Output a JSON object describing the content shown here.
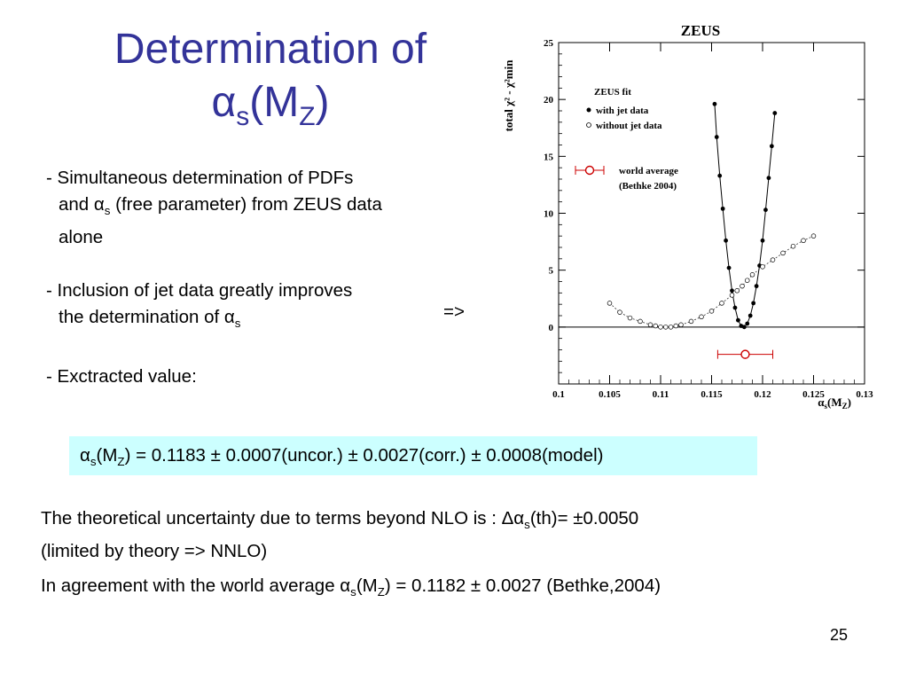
{
  "slide": {
    "title_main": "Determination of",
    "title_alpha": "α",
    "title_s": "s",
    "title_paren_open": "(M",
    "title_z": "Z",
    "title_paren_close": ")",
    "bullet1_line1": "- Simultaneous determination of PDFs",
    "bullet1_line2a": "and α",
    "bullet1_sub": "s",
    "bullet1_line2b": " (free parameter) from ZEUS data",
    "bullet1_line3": "alone",
    "bullet2_line1": "- Inclusion of jet data greatly improves",
    "bullet2_line2a": "the determination of α",
    "bullet2_sub": "s",
    "bullet3": "- Exctracted value:",
    "arrow": "=>",
    "result_a": "α",
    "result_s": "s",
    "result_b": "(M",
    "result_z": "Z",
    "result_c": ") = 0.1183 ± 0.0007(uncor.) ± 0.0027(corr.) ± 0.0008(model)",
    "theory_line1a": "The theoretical uncertainty due to terms beyond NLO is :  Δα",
    "theory_sub": "s",
    "theory_line1b": "(th)= ±0.0050",
    "theory_line2": "(limited by theory => NNLO)",
    "agree_a": "In agreement with the world average α",
    "agree_s": "s",
    "agree_b": "(M",
    "agree_z": "Z",
    "agree_c": ") = 0.1182 ± 0.0027  (Bethke,2004)",
    "page_number": "25"
  },
  "chart_data": {
    "type": "scatter",
    "title": "ZEUS",
    "xlabel_main": "α",
    "xlabel_sub": "s",
    "xlabel_rest": "(M",
    "xlabel_z": "Z",
    "xlabel_close": ")",
    "ylabel": "total χ² - χ²min",
    "xlim": [
      0.1,
      0.13
    ],
    "ylim": [
      -5,
      25
    ],
    "xticks": [
      "0.1",
      "0.105",
      "0.11",
      "0.115",
      "0.12",
      "0.125",
      "0.13"
    ],
    "yticks": [
      "0",
      "5",
      "10",
      "15",
      "20",
      "25"
    ],
    "legend_title": "ZEUS fit",
    "series": [
      {
        "name": "with jet data",
        "marker": "filled",
        "x": [
          0.1153,
          0.1155,
          0.1158,
          0.1161,
          0.1164,
          0.1167,
          0.117,
          0.1173,
          0.1176,
          0.1179,
          0.1182,
          0.1185,
          0.1188,
          0.1191,
          0.1194,
          0.1197,
          0.12,
          0.1203,
          0.1206,
          0.1209,
          0.1212
        ],
        "y": [
          19.6,
          16.7,
          13.3,
          10.4,
          7.6,
          5.2,
          3.2,
          1.7,
          0.6,
          0.1,
          0.0,
          0.3,
          1.0,
          2.1,
          3.6,
          5.4,
          7.6,
          10.3,
          13.1,
          15.9,
          18.8
        ]
      },
      {
        "name": "without jet data",
        "marker": "open",
        "x": [
          0.105,
          0.106,
          0.107,
          0.108,
          0.109,
          0.1095,
          0.11,
          0.1105,
          0.111,
          0.1115,
          0.112,
          0.113,
          0.114,
          0.115,
          0.116,
          0.117,
          0.1175,
          0.118,
          0.1185,
          0.119,
          0.12,
          0.121,
          0.122,
          0.123,
          0.124,
          0.125
        ],
        "y": [
          2.1,
          1.3,
          0.8,
          0.5,
          0.2,
          0.1,
          0.0,
          0.0,
          0.0,
          0.1,
          0.2,
          0.5,
          0.9,
          1.4,
          2.1,
          2.8,
          3.2,
          3.6,
          4.1,
          4.6,
          5.3,
          5.9,
          6.5,
          7.1,
          7.6,
          8.0
        ]
      }
    ],
    "world_average": {
      "label_line1": "world average",
      "label_line2": "(Bethke 2004)",
      "color": "#cc0000"
    },
    "fit_result": {
      "value": 0.1183,
      "error": 0.0027,
      "y": -2.4,
      "color": "#cc0000"
    }
  }
}
